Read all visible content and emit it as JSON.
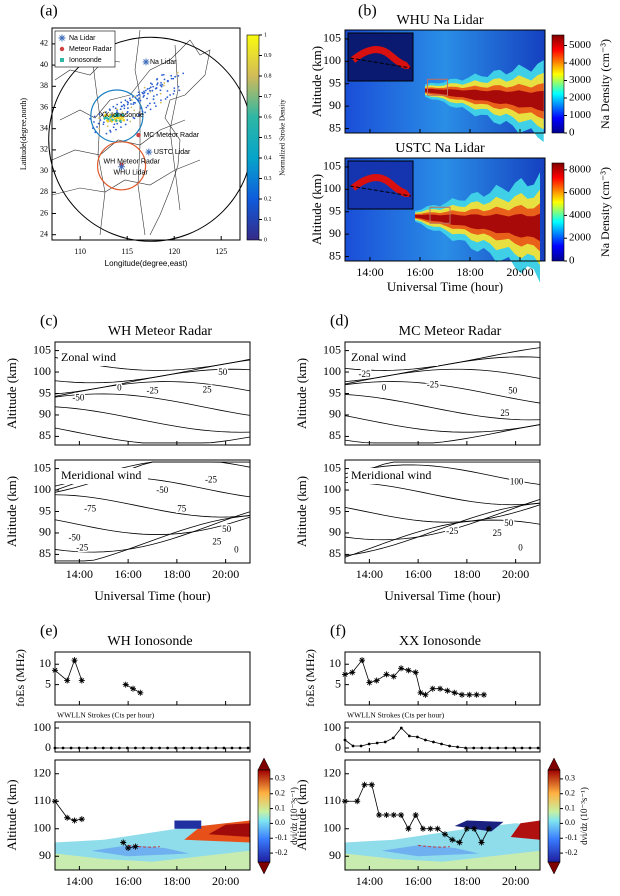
{
  "panel_a": {
    "label": "(a)",
    "xlabel": "Longitude(degree,east)",
    "ylabel": "Latitude(degree,north)",
    "xlim": [
      107,
      127
    ],
    "xticks": [
      110,
      115,
      120,
      125
    ],
    "ylim": [
      23.5,
      43.5
    ],
    "yticks": [
      24,
      26,
      28,
      30,
      32,
      34,
      36,
      38,
      40,
      42
    ],
    "legend": [
      "Na Lidar",
      "Meteor Radar",
      "Ionosonde"
    ],
    "sites": [
      "Na Lidar",
      "XX Ionosonde",
      "MC Meteor Radar",
      "USTC Lidar",
      "WH Meteor Radar",
      "WHU Lidar"
    ],
    "colorbar": {
      "label": "Normalized Stroke Density",
      "lim": [
        0,
        1
      ],
      "ticks": [
        0,
        0.1,
        0.2,
        0.3,
        0.4,
        0.5,
        0.6,
        0.7,
        0.8,
        0.9,
        1
      ]
    }
  },
  "panel_b": {
    "label": "(b)",
    "xlabel": "Universal Time (hour)",
    "ylabel": "Altitude (km)",
    "xlim": [
      13,
      21
    ],
    "xticks": [
      {
        "value": 14,
        "label": "14:00"
      },
      {
        "value": 16,
        "label": "16:00"
      },
      {
        "value": 18,
        "label": "18:00"
      },
      {
        "value": 20,
        "label": "20:00"
      }
    ],
    "ylim": [
      84,
      107
    ],
    "yticks": [
      85,
      90,
      95,
      100,
      105
    ],
    "subplots": [
      {
        "title": "WHU Na Lidar",
        "colorbar": {
          "label": "Na Density (cm⁻³)",
          "lim": [
            0,
            5600
          ],
          "ticks": [
            0,
            1000,
            2000,
            3000,
            4000,
            5000
          ]
        }
      },
      {
        "title": "USTC Na Lidar",
        "colorbar": {
          "label": "Na Density (cm⁻³)",
          "lim": [
            0,
            8600
          ],
          "ticks": [
            0,
            2000,
            4000,
            6000,
            8000
          ]
        }
      }
    ]
  },
  "panel_c": {
    "label": "(c)",
    "title": "WH Meteor Radar",
    "xlabel": "Universal Time (hour)",
    "ylabel": "Altitude (km)",
    "xlim": [
      13,
      21
    ],
    "xticks": [
      {
        "value": 14,
        "label": "14:00"
      },
      {
        "value": 16,
        "label": "16:00"
      },
      {
        "value": 18,
        "label": "18:00"
      },
      {
        "value": 20,
        "label": "20:00"
      }
    ],
    "ylim": [
      83,
      107
    ],
    "yticks": [
      85,
      90,
      95,
      100,
      105
    ],
    "subplots": [
      {
        "title": "Zonal wind",
        "contour_labels": [
          -50,
          0,
          -25,
          25,
          50
        ]
      },
      {
        "title": "Meridional wind",
        "contour_labels": [
          -25,
          -50,
          -75,
          75,
          50,
          25,
          0,
          -50,
          -25
        ]
      }
    ]
  },
  "panel_d": {
    "label": "(d)",
    "title": "MC Meteor Radar",
    "xlabel": "Universal Time (hour)",
    "ylabel": "Altitude (km)",
    "xlim": [
      13,
      21
    ],
    "xticks": [
      {
        "value": 14,
        "label": "14:00"
      },
      {
        "value": 16,
        "label": "16:00"
      },
      {
        "value": 18,
        "label": "18:00"
      },
      {
        "value": 20,
        "label": "20:00"
      }
    ],
    "ylim": [
      83,
      107
    ],
    "yticks": [
      85,
      90,
      95,
      100,
      105
    ],
    "subplots": [
      {
        "title": "Zonal wind",
        "contour_labels": [
          -25,
          0,
          -25,
          50,
          25
        ]
      },
      {
        "title": "Meridional wind",
        "contour_labels": [
          100,
          -25,
          25,
          50,
          0
        ]
      }
    ]
  },
  "panel_e": {
    "label": "(e)",
    "title": "WH Ionosonde",
    "xlim": [
      13,
      21
    ],
    "xticks": [
      {
        "value": 14,
        "label": "14:00"
      },
      {
        "value": 16,
        "label": "16:00"
      },
      {
        "value": 18,
        "label": "18:00"
      },
      {
        "value": 20,
        "label": "20:00"
      }
    ],
    "foEs": {
      "ylabel": "foEs (MHz)",
      "ylim": [
        0,
        13
      ],
      "yticks": [
        5,
        10
      ]
    },
    "strokes": {
      "title": "WWLLN Strokes (Cts per hour)",
      "ylim": [
        -20,
        130
      ],
      "yticks": [
        0,
        100
      ]
    },
    "altitude": {
      "ylabel": "Altitude (km)",
      "ylim": [
        85,
        125
      ],
      "yticks": [
        90,
        100,
        110,
        120
      ]
    },
    "colorbar": {
      "label": "dνi/dz (10⁻³s⁻¹)",
      "lim": [
        -0.26,
        0.36
      ],
      "ticks": [
        -0.2,
        -0.1,
        {
          "value": 0,
          "label": "0.0"
        },
        0.1,
        0.2,
        0.3
      ]
    }
  },
  "panel_f": {
    "label": "(f)",
    "title": "XX Ionosonde",
    "xlim": [
      13,
      21
    ],
    "xticks": [
      {
        "value": 14,
        "label": "14:00"
      },
      {
        "value": 16,
        "label": "16:00"
      },
      {
        "value": 18,
        "label": "18:00"
      },
      {
        "value": 20,
        "label": "20:00"
      }
    ],
    "foEs": {
      "ylabel": "foEs (MHz)",
      "ylim": [
        0,
        13
      ],
      "yticks": [
        5,
        10
      ]
    },
    "strokes": {
      "title": "WWLLN Strokes (Cts per hour)",
      "ylim": [
        -20,
        130
      ],
      "yticks": [
        0,
        100
      ]
    },
    "altitude": {
      "ylabel": "Altitude (km)",
      "ylim": [
        85,
        125
      ],
      "yticks": [
        90,
        100,
        110,
        120
      ]
    },
    "colorbar": {
      "label": "dνi/dz (10⁻³s⁻¹)",
      "lim": [
        -0.26,
        0.36
      ],
      "ticks": [
        -0.2,
        -0.1,
        {
          "value": 0,
          "label": "0.0"
        },
        0.1,
        0.2,
        0.3
      ]
    }
  }
}
